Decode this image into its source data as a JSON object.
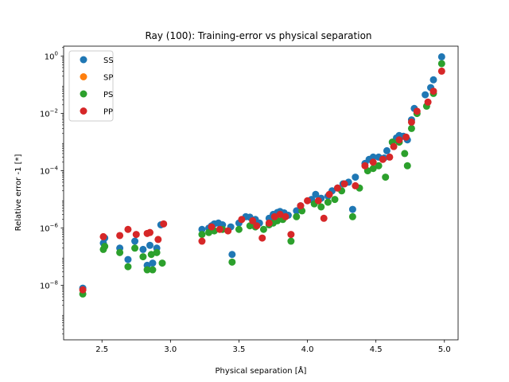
{
  "chart_data": {
    "type": "scatter",
    "title": "Ray (100): Training-error vs physical separation",
    "xlabel": "Physical separation [Å]",
    "ylabel": "Relative error -1 [*]",
    "xlim": [
      2.22,
      5.1
    ],
    "ylim_log10": [
      -9.9,
      0.35
    ],
    "y_scale": "log",
    "x_ticks": [
      {
        "value": 2.5,
        "label": "2.5"
      },
      {
        "value": 3.0,
        "label": "3.0"
      },
      {
        "value": 3.5,
        "label": "3.5"
      },
      {
        "value": 4.0,
        "label": "4.0"
      },
      {
        "value": 4.5,
        "label": "4.5"
      },
      {
        "value": 5.0,
        "label": "5.0"
      }
    ],
    "y_ticks": [
      {
        "exp": -8,
        "base": "10",
        "sup": "−8"
      },
      {
        "exp": -6,
        "base": "10",
        "sup": "−6"
      },
      {
        "exp": -4,
        "base": "10",
        "sup": "−4"
      },
      {
        "exp": -2,
        "base": "10",
        "sup": "−2"
      },
      {
        "exp": 0,
        "base": "10",
        "sup": "0"
      }
    ],
    "grid": false,
    "legend_position": "top-left",
    "series": [
      {
        "name": "SS",
        "color": "#1f77b4",
        "points": [
          [
            2.36,
            8e-09
          ],
          [
            2.51,
            3e-07
          ],
          [
            2.52,
            4.5e-07
          ],
          [
            2.63,
            2e-07
          ],
          [
            2.69,
            8e-08
          ],
          [
            2.74,
            3.5e-07
          ],
          [
            2.8,
            1.8e-07
          ],
          [
            2.83,
            5e-08
          ],
          [
            2.85,
            2.5e-07
          ],
          [
            2.87,
            6e-08
          ],
          [
            2.9,
            2e-07
          ],
          [
            2.93,
            1.3e-06
          ],
          [
            3.23,
            9e-07
          ],
          [
            3.28,
            1e-06
          ],
          [
            3.3,
            1.2e-06
          ],
          [
            3.32,
            1.4e-06
          ],
          [
            3.35,
            1.5e-06
          ],
          [
            3.38,
            1.3e-06
          ],
          [
            3.44,
            1.1e-06
          ],
          [
            3.45,
            1.2e-07
          ],
          [
            3.5,
            1.5e-06
          ],
          [
            3.55,
            2.5e-06
          ],
          [
            3.58,
            2.4e-06
          ],
          [
            3.62,
            2e-06
          ],
          [
            3.65,
            1.5e-06
          ],
          [
            3.72,
            2.2e-06
          ],
          [
            3.75,
            3e-06
          ],
          [
            3.78,
            3.5e-06
          ],
          [
            3.8,
            3.8e-06
          ],
          [
            3.83,
            3.4e-06
          ],
          [
            3.86,
            2.8e-06
          ],
          [
            3.92,
            4e-06
          ],
          [
            3.95,
            6e-06
          ],
          [
            4.03,
            1e-05
          ],
          [
            4.06,
            1.5e-05
          ],
          [
            4.1,
            1.1e-05
          ],
          [
            4.15,
            1.3e-05
          ],
          [
            4.18,
            2e-05
          ],
          [
            4.22,
            2.5e-05
          ],
          [
            4.26,
            3.5e-05
          ],
          [
            4.3,
            4e-05
          ],
          [
            4.33,
            4.5e-06
          ],
          [
            4.35,
            6e-05
          ],
          [
            4.42,
            0.00018
          ],
          [
            4.45,
            0.00025
          ],
          [
            4.48,
            0.0003
          ],
          [
            4.52,
            0.0003
          ],
          [
            4.56,
            0.00028
          ],
          [
            4.58,
            0.0005
          ],
          [
            4.62,
            0.001
          ],
          [
            4.65,
            0.0014
          ],
          [
            4.67,
            0.0017
          ],
          [
            4.7,
            0.0016
          ],
          [
            4.73,
            0.0012
          ],
          [
            4.76,
            0.006
          ],
          [
            4.78,
            0.015
          ],
          [
            4.86,
            0.045
          ],
          [
            4.9,
            0.08
          ],
          [
            4.92,
            0.15
          ],
          [
            4.98,
            0.95
          ]
        ]
      },
      {
        "name": "SP",
        "color": "#ff7f0e",
        "points": []
      },
      {
        "name": "PS",
        "color": "#2ca02c",
        "points": [
          [
            2.36,
            5e-09
          ],
          [
            2.51,
            1.8e-07
          ],
          [
            2.52,
            2.3e-07
          ],
          [
            2.63,
            1.4e-07
          ],
          [
            2.69,
            4.5e-08
          ],
          [
            2.74,
            2e-07
          ],
          [
            2.8,
            1e-07
          ],
          [
            2.83,
            3.5e-08
          ],
          [
            2.86,
            1.2e-07
          ],
          [
            2.87,
            3.5e-08
          ],
          [
            2.9,
            1.4e-07
          ],
          [
            2.94,
            6e-08
          ],
          [
            3.23,
            6e-07
          ],
          [
            3.28,
            7e-07
          ],
          [
            3.32,
            8e-07
          ],
          [
            3.38,
            9e-07
          ],
          [
            3.45,
            6.5e-08
          ],
          [
            3.5,
            9e-07
          ],
          [
            3.58,
            1.2e-06
          ],
          [
            3.62,
            1.1e-06
          ],
          [
            3.68,
            9e-07
          ],
          [
            3.72,
            1.3e-06
          ],
          [
            3.75,
            1.5e-06
          ],
          [
            3.78,
            1.8e-06
          ],
          [
            3.82,
            2e-06
          ],
          [
            3.88,
            3.5e-07
          ],
          [
            3.92,
            2.5e-06
          ],
          [
            3.96,
            4e-06
          ],
          [
            4.05,
            7e-06
          ],
          [
            4.1,
            5.5e-06
          ],
          [
            4.15,
            8e-06
          ],
          [
            4.2,
            1e-05
          ],
          [
            4.25,
            2e-05
          ],
          [
            4.33,
            2.5e-06
          ],
          [
            4.38,
            2.5e-05
          ],
          [
            4.44,
            0.0001
          ],
          [
            4.48,
            0.00012
          ],
          [
            4.52,
            0.00015
          ],
          [
            4.57,
            6e-05
          ],
          [
            4.62,
            0.001
          ],
          [
            4.67,
            0.001
          ],
          [
            4.71,
            0.0004
          ],
          [
            4.73,
            0.00015
          ],
          [
            4.76,
            0.003
          ],
          [
            4.8,
            0.01
          ],
          [
            4.87,
            0.018
          ],
          [
            4.92,
            0.05
          ],
          [
            4.98,
            0.55
          ]
        ]
      },
      {
        "name": "PP",
        "color": "#d62728",
        "points": [
          [
            2.36,
            7e-09
          ],
          [
            2.51,
            5e-07
          ],
          [
            2.63,
            5.5e-07
          ],
          [
            2.69,
            9e-07
          ],
          [
            2.75,
            6e-07
          ],
          [
            2.83,
            6.5e-07
          ],
          [
            2.85,
            7e-07
          ],
          [
            2.91,
            4e-07
          ],
          [
            2.95,
            1.4e-06
          ],
          [
            3.23,
            3.5e-07
          ],
          [
            3.3,
            1.1e-06
          ],
          [
            3.36,
            9e-07
          ],
          [
            3.42,
            8e-07
          ],
          [
            3.52,
            2e-06
          ],
          [
            3.6,
            1.8e-06
          ],
          [
            3.63,
            1.2e-06
          ],
          [
            3.67,
            4.5e-07
          ],
          [
            3.72,
            1.5e-06
          ],
          [
            3.76,
            2.5e-06
          ],
          [
            3.8,
            3e-06
          ],
          [
            3.84,
            2.5e-06
          ],
          [
            3.88,
            6e-07
          ],
          [
            3.95,
            6e-06
          ],
          [
            4.0,
            9e-06
          ],
          [
            4.08,
            9e-06
          ],
          [
            4.12,
            2.2e-06
          ],
          [
            4.16,
            1.5e-05
          ],
          [
            4.22,
            2.5e-05
          ],
          [
            4.27,
            3.5e-05
          ],
          [
            4.35,
            3e-05
          ],
          [
            4.42,
            0.00015
          ],
          [
            4.48,
            0.0002
          ],
          [
            4.55,
            0.00025
          ],
          [
            4.6,
            0.0003
          ],
          [
            4.63,
            0.0007
          ],
          [
            4.67,
            0.0012
          ],
          [
            4.72,
            0.0015
          ],
          [
            4.76,
            0.005
          ],
          [
            4.8,
            0.012
          ],
          [
            4.88,
            0.025
          ],
          [
            4.92,
            0.06
          ],
          [
            4.98,
            0.3
          ]
        ]
      }
    ]
  }
}
